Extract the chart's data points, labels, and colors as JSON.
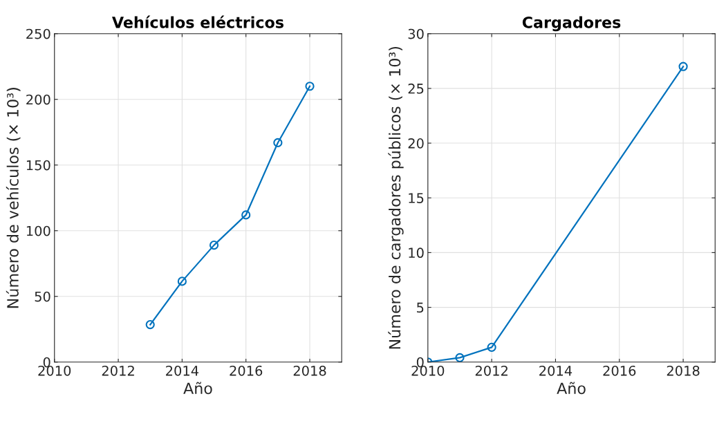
{
  "chart_data": [
    {
      "type": "line",
      "title": "Vehículos eléctricos",
      "xlabel": "Año",
      "ylabel": "Número de vehículos (× 10³)",
      "x": [
        2013,
        2014,
        2015,
        2016,
        2017,
        2018
      ],
      "series": [
        {
          "color": "#0072bd",
          "values": [
            28.5,
            61.5,
            89,
            112,
            167,
            210
          ]
        }
      ],
      "xlim": [
        2010,
        2019
      ],
      "xticks": [
        2010,
        2012,
        2014,
        2016,
        2018
      ],
      "ylim": [
        0,
        250
      ],
      "yticks": [
        0,
        50,
        100,
        150,
        200,
        250
      ],
      "grid": true,
      "marker": "circle",
      "line_style": "solid"
    },
    {
      "type": "line",
      "title": "Cargadores",
      "xlabel": "Año",
      "ylabel": "Número de cargadores públicos (× 10³)",
      "x": [
        2010,
        2011,
        2012,
        2018
      ],
      "series": [
        {
          "color": "#0072bd",
          "values": [
            0,
            0.4,
            1.35,
            27
          ]
        }
      ],
      "xlim": [
        2010,
        2019
      ],
      "xticks": [
        2010,
        2012,
        2014,
        2016,
        2018
      ],
      "ylim": [
        0,
        30
      ],
      "yticks": [
        0,
        5,
        10,
        15,
        20,
        25,
        30
      ],
      "grid": true,
      "marker": "circle",
      "line_style": "solid"
    }
  ]
}
